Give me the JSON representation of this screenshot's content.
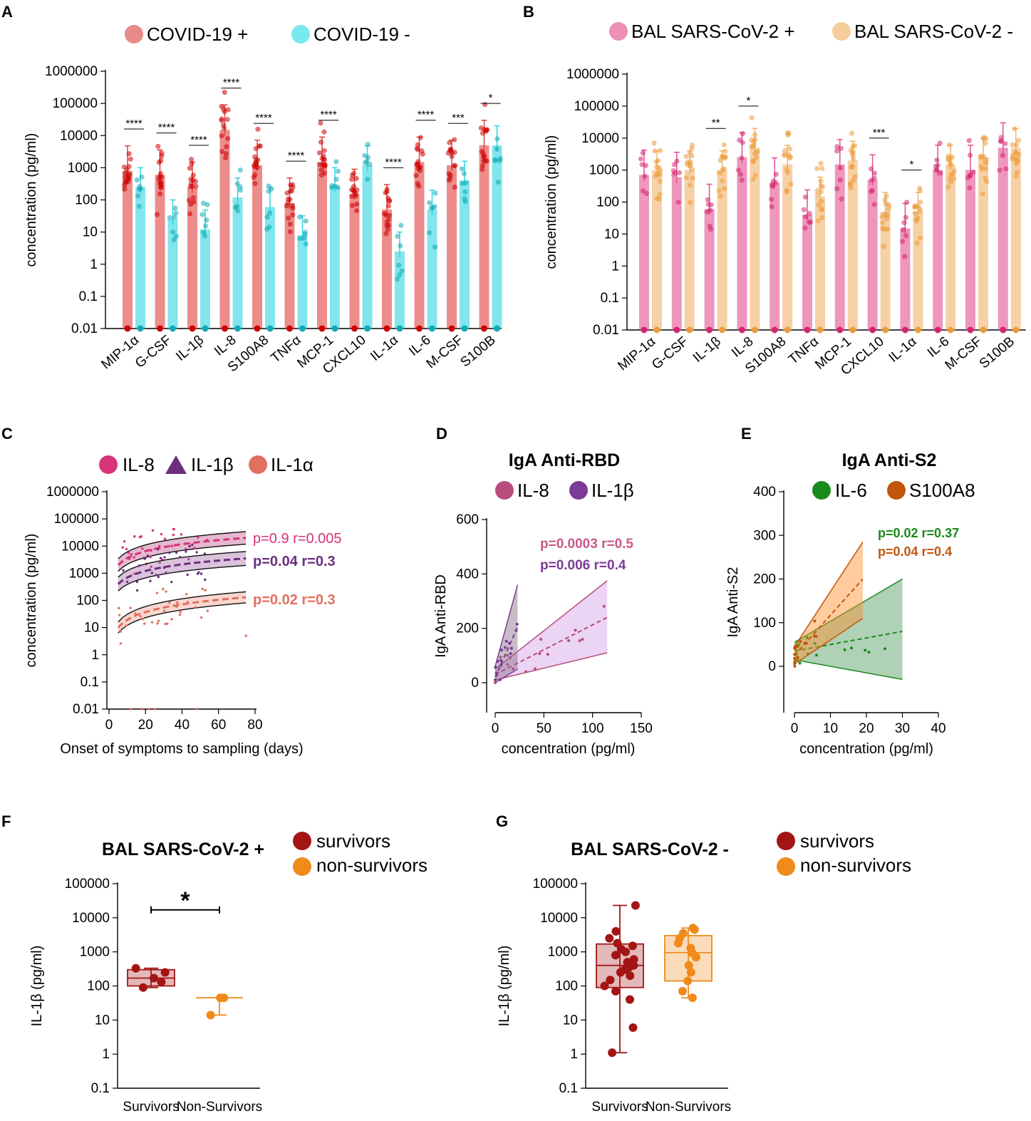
{
  "panels": {
    "A": {
      "label": "A",
      "legend": [
        "COVID-19 +",
        "COVID-19 -"
      ],
      "colors": [
        "#e0413f",
        "#2fd6e0"
      ],
      "dark_colors": [
        "#cc0000",
        "#13a8b5"
      ]
    },
    "B": {
      "label": "B",
      "legend": [
        "BAL SARS-CoV-2 +",
        "BAL SARS-CoV-2 -"
      ],
      "colors": [
        "#e2508f",
        "#f0b36a"
      ],
      "dark_colors": [
        "#d4256e",
        "#ec9a3c"
      ]
    },
    "C": {
      "label": "C",
      "legend": [
        "IL-8",
        "IL-1β",
        "IL-1α"
      ],
      "colors": [
        "#d6337a",
        "#6b2f7e",
        "#e0705f"
      ],
      "stats": [
        "p=0.9 r=0.005",
        "p=0.04 r=0.3",
        "p=0.02 r=0.3"
      ]
    },
    "D": {
      "label": "D",
      "title": "IgA Anti-RBD",
      "legend": [
        "IL-8",
        "IL-1β"
      ],
      "colors": [
        "#b84d7d",
        "#7b3b96"
      ],
      "stats": [
        "p=0.0003 r=0.5",
        "p=0.006 r=0.4"
      ]
    },
    "E": {
      "label": "E",
      "title": "IgA Anti-S2",
      "legend": [
        "IL-6",
        "S100A8"
      ],
      "colors": [
        "#1a8a1a",
        "#c0570a"
      ],
      "stats": [
        "p=0.02 r=0.37",
        "p=0.04 r=0.4"
      ]
    },
    "F": {
      "label": "F",
      "title": "BAL SARS-CoV-2 +",
      "legend": [
        "survivors",
        "non-survivors"
      ],
      "colors": [
        "#a31515",
        "#f08a1a"
      ],
      "sig": "*"
    },
    "G": {
      "label": "G",
      "title": "BAL SARS-CoV-2 -",
      "legend": [
        "survivors",
        "non-survivors"
      ],
      "colors": [
        "#a31515",
        "#f08a1a"
      ]
    }
  },
  "chart_data": [
    {
      "id": "A",
      "type": "bar",
      "scale": "log",
      "ylabel": "concentration (pg/ml)",
      "ylim": [
        0.01,
        1000000
      ],
      "yticks": [
        "0.01",
        "0.1",
        "1",
        "10",
        "100",
        "1000",
        "10000",
        "100000",
        "1000000"
      ],
      "categories": [
        "MIP-1α",
        "G-CSF",
        "IL-1β",
        "IL-8",
        "S100A8",
        "TNFα",
        "MCP-1",
        "CXCL10",
        "IL-1α",
        "IL-6",
        "M-CSF",
        "S100B"
      ],
      "series": [
        {
          "name": "COVID-19 +",
          "values": [
            800,
            600,
            250,
            15000,
            1200,
            80,
            1500,
            150,
            50,
            1500,
            1200,
            5000
          ]
        },
        {
          "name": "COVID-19 -",
          "values": [
            250,
            25,
            12,
            120,
            60,
            8,
            250,
            1200,
            2.5,
            50,
            400,
            5000
          ]
        }
      ],
      "significance": [
        "****",
        "****",
        "****",
        "****",
        "****",
        "****",
        "****",
        "",
        "****",
        "****",
        "***",
        "*"
      ]
    },
    {
      "id": "B",
      "type": "bar",
      "scale": "log",
      "ylabel": "concentration (pg/ml)",
      "ylim": [
        0.01,
        1000000
      ],
      "yticks": [
        "0.01",
        "0.1",
        "1",
        "10",
        "100",
        "1000",
        "10000",
        "100000",
        "1000000"
      ],
      "categories": [
        "MIP-1α",
        "G-CSF",
        "IL-1β",
        "IL-8",
        "S100A8",
        "TNFα",
        "MCP-1",
        "CXCL10",
        "IL-1α",
        "IL-6",
        "M-CSF",
        "S100B"
      ],
      "series": [
        {
          "name": "BAL SARS-CoV-2 +",
          "values": [
            700,
            600,
            60,
            2500,
            400,
            40,
            1500,
            500,
            15,
            1000,
            1000,
            5000
          ]
        },
        {
          "name": "BAL SARS-CoV-2 -",
          "values": [
            1000,
            1000,
            1000,
            5000,
            1500,
            150,
            2000,
            50,
            50,
            1500,
            2500,
            5000
          ]
        }
      ],
      "significance": [
        "",
        "",
        "**",
        "*",
        "",
        "",
        "",
        "***",
        "*",
        "",
        "",
        ""
      ]
    },
    {
      "id": "C",
      "type": "scatter",
      "scale": "log",
      "xlabel": "Onset of symptoms to sampling (days)",
      "ylabel": "concentration (pg/ml)",
      "xlim": [
        0,
        80
      ],
      "ylim": [
        0.01,
        1000000
      ],
      "xticks": [
        "0",
        "20",
        "40",
        "60",
        "80"
      ],
      "yticks": [
        "0.01",
        "0.1",
        "1",
        "10",
        "100",
        "1000",
        "10000",
        "100000",
        "1000000"
      ],
      "series": [
        {
          "name": "IL-8",
          "fit_start": 2000,
          "fit_end": 20000,
          "band_factor": 1.7
        },
        {
          "name": "IL-1β",
          "fit_start": 400,
          "fit_end": 3500,
          "band_factor": 1.8
        },
        {
          "name": "IL-1α",
          "fit_start": 10,
          "fit_end": 130,
          "band_factor": 1.6
        }
      ]
    },
    {
      "id": "D",
      "type": "scatter",
      "xlabel": "concentration (pg/ml)",
      "ylabel": "IgA Anti-RBD",
      "xlim": [
        0,
        150
      ],
      "ylim": [
        0,
        600
      ],
      "xticks": [
        "0",
        "50",
        "100",
        "150"
      ],
      "yticks": [
        "0",
        "200",
        "400",
        "600"
      ],
      "series": [
        {
          "name": "IL-8",
          "fit": [
            [
              0,
              30
            ],
            [
              115,
              240
            ]
          ],
          "band_upper": [
            [
              0,
              50
            ],
            [
              115,
              375
            ]
          ],
          "band_lower": [
            [
              0,
              10
            ],
            [
              115,
              110
            ]
          ]
        },
        {
          "name": "IL-1β",
          "fit": [
            [
              0,
              20
            ],
            [
              23,
              205
            ]
          ],
          "band_upper": [
            [
              0,
              60
            ],
            [
              23,
              360
            ]
          ],
          "band_lower": [
            [
              0,
              0
            ],
            [
              23,
              50
            ]
          ]
        }
      ]
    },
    {
      "id": "E",
      "type": "scatter",
      "xlabel": "concentration (pg/ml)",
      "ylabel": "IgA Anti-S2",
      "xlim": [
        0,
        40
      ],
      "ylim": [
        0,
        400
      ],
      "xticks": [
        "0",
        "10",
        "20",
        "30",
        "40"
      ],
      "yticks": [
        "0",
        "100",
        "200",
        "300",
        "400"
      ],
      "series": [
        {
          "name": "IL-6",
          "fit": [
            [
              0,
              35
            ],
            [
              30,
              80
            ]
          ],
          "band_upper": [
            [
              0,
              55
            ],
            [
              30,
              200
            ]
          ],
          "band_lower": [
            [
              0,
              15
            ],
            [
              30,
              -30
            ]
          ]
        },
        {
          "name": "S100A8",
          "fit": [
            [
              0,
              25
            ],
            [
              19,
              200
            ]
          ],
          "band_upper": [
            [
              0,
              45
            ],
            [
              19,
              285
            ]
          ],
          "band_lower": [
            [
              0,
              5
            ],
            [
              19,
              110
            ]
          ]
        }
      ]
    },
    {
      "id": "F",
      "type": "box",
      "scale": "log",
      "ylabel": "IL-1β (pg/ml)",
      "ylim": [
        0.1,
        100000
      ],
      "yticks": [
        "0.1",
        "1",
        "10",
        "100",
        "1000",
        "10000",
        "100000"
      ],
      "categories": [
        "Survivors",
        "Non-Survivors"
      ],
      "groups": [
        {
          "name": "survivors",
          "min": 90,
          "q1": 100,
          "median": 170,
          "q3": 300,
          "max": 330,
          "points": [
            90,
            130,
            170,
            250,
            330
          ]
        },
        {
          "name": "non-survivors",
          "min": 14,
          "q1": 45,
          "median": 45,
          "q3": 45,
          "max": 45,
          "points": [
            14,
            45,
            45
          ]
        }
      ]
    },
    {
      "id": "G",
      "type": "box",
      "scale": "log",
      "ylabel": "IL-1β (pg/ml)",
      "ylim": [
        0.1,
        100000
      ],
      "yticks": [
        "0.1",
        "1",
        "10",
        "100",
        "1000",
        "10000",
        "100000"
      ],
      "categories": [
        "Survivors",
        "Non-Survivors"
      ],
      "groups": [
        {
          "name": "survivors",
          "min": 1.1,
          "q1": 90,
          "median": 400,
          "q3": 1700,
          "max": 23000,
          "points": [
            1.1,
            6,
            40,
            70,
            100,
            150,
            200,
            250,
            300,
            350,
            400,
            500,
            600,
            800,
            1000,
            1200,
            1500,
            1800,
            2500,
            4000,
            23000
          ]
        },
        {
          "name": "non-survivors",
          "min": 45,
          "q1": 140,
          "median": 950,
          "q3": 3000,
          "max": 5000,
          "points": [
            45,
            70,
            140,
            250,
            400,
            700,
            950,
            1300,
            1800,
            2500,
            3500,
            4500,
            5000
          ]
        }
      ]
    }
  ]
}
